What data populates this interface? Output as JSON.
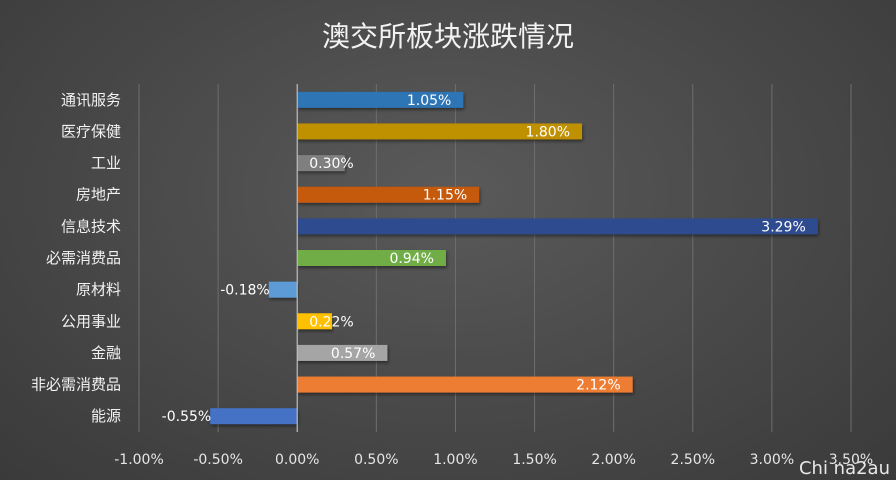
{
  "chart_data": {
    "type": "bar",
    "orientation": "horizontal",
    "title": "澳交所板块涨跌情况",
    "xlabel": "",
    "ylabel": "",
    "xlim": [
      -0.01,
      0.035
    ],
    "x_ticks": [
      -0.01,
      -0.005,
      0,
      0.005,
      0.01,
      0.015,
      0.02,
      0.025,
      0.03,
      0.035
    ],
    "x_tick_labels": [
      "-1.00%",
      "-0.50%",
      "0.00%",
      "0.50%",
      "1.00%",
      "1.50%",
      "2.00%",
      "2.50%",
      "3.00%",
      "3.50%"
    ],
    "grid": true,
    "legend": "none",
    "categories": [
      "通讯服务",
      "医疗保健",
      "工业",
      "房地产",
      "信息技术",
      "必需消费品",
      "原材料",
      "公用事业",
      "金融",
      "非必需消费品",
      "能源"
    ],
    "values": [
      0.0105,
      0.018,
      0.003,
      0.0115,
      0.0329,
      0.0094,
      -0.0018,
      0.0022,
      0.0057,
      0.0212,
      -0.0055
    ],
    "value_labels": [
      "1.05%",
      "1.80%",
      "0.30%",
      "1.15%",
      "3.29%",
      "0.94%",
      "-0.18%",
      "0.22%",
      "0.57%",
      "2.12%",
      "-0.55%"
    ],
    "colors": [
      "#2e75b6",
      "#bf9000",
      "#7f7f7f",
      "#c55a11",
      "#2f4b8f",
      "#70ad47",
      "#5b9bd5",
      "#ffc000",
      "#a5a5a5",
      "#ed7d31",
      "#4472c4"
    ]
  },
  "watermark": "Chi na2au"
}
